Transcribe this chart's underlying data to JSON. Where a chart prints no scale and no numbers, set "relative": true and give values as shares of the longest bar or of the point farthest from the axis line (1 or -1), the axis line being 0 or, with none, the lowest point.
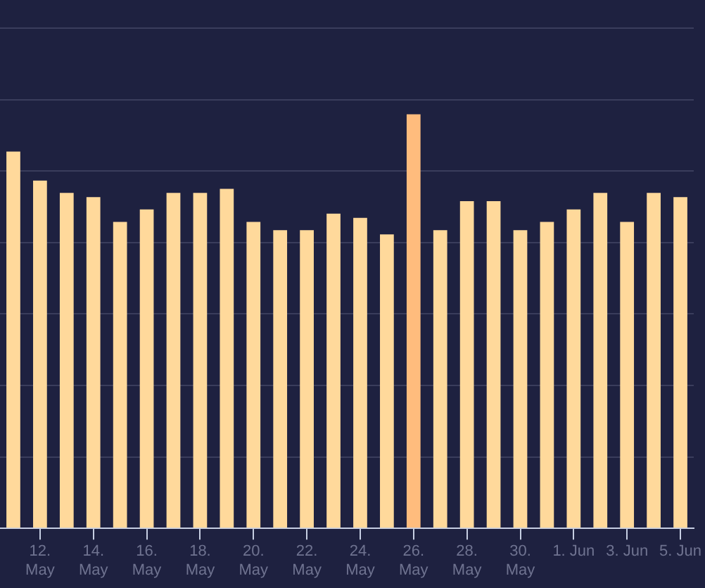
{
  "chart_data": {
    "type": "bar",
    "relative": true,
    "categories": [
      null,
      "12. May",
      null,
      "14. May",
      null,
      "16. May",
      null,
      "18. May",
      null,
      "20. May",
      null,
      "22. May",
      null,
      "24. May",
      null,
      "26. May",
      null,
      "28. May",
      null,
      "30. May",
      null,
      "1. Jun",
      null,
      "3. Jun",
      null,
      "5. Jun"
    ],
    "values": [
      0.91,
      0.84,
      0.81,
      0.8,
      0.74,
      0.77,
      0.81,
      0.81,
      0.82,
      0.74,
      0.72,
      0.72,
      0.76,
      0.75,
      0.71,
      1,
      0.72,
      0.79,
      0.79,
      0.72,
      0.74,
      0.77,
      0.81,
      0.74,
      0.81,
      0.8
    ],
    "colors": [
      "#ffd99b",
      "#ffd99b",
      "#ffd99b",
      "#ffd99b",
      "#ffd99b",
      "#ffd99b",
      "#ffd99b",
      "#ffd99b",
      "#ffd99b",
      "#ffd99b",
      "#ffd99b",
      "#ffd99b",
      "#ffd99b",
      "#ffd99b",
      "#ffd99b",
      "#ffbc7d",
      "#ffd99b",
      "#ffd99b",
      "#ffd99b",
      "#ffd99b",
      "#ffd99b",
      "#ffd99b",
      "#ffd99b",
      "#ffd99b",
      "#ffd99b",
      "#ffd99b"
    ],
    "grid": "y"
  }
}
